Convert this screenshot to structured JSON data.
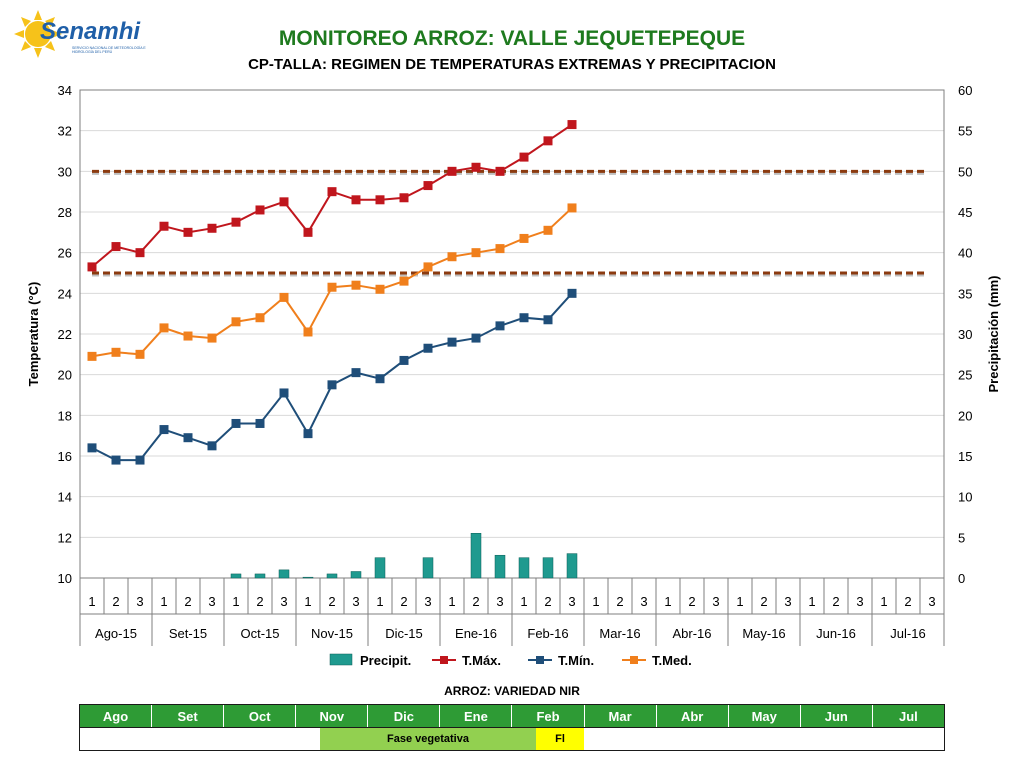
{
  "header": {
    "logo_text": "Senamhi",
    "logo_subtext": "Servicio Nacional de Meteorología e Hidrología del Perú"
  },
  "chart_data": {
    "type": "line",
    "title": "MONITOREO ARROZ: VALLE JEQUETEPEQUE",
    "subtitle": "CP-TALLA: REGIMEN DE TEMPERATURAS EXTREMAS Y PRECIPITACION",
    "ylabel": "Temperatura (°C)",
    "y2label": "Precipitación  (mm)",
    "ylim": [
      10,
      34
    ],
    "y_ticks": [
      10,
      12,
      14,
      16,
      18,
      20,
      22,
      24,
      26,
      28,
      30,
      32,
      34
    ],
    "y2lim": [
      0,
      60
    ],
    "y2_ticks": [
      0,
      5,
      10,
      15,
      20,
      25,
      30,
      35,
      40,
      45,
      50,
      55,
      60
    ],
    "grid": true,
    "dekads": [
      "1",
      "2",
      "3"
    ],
    "months": [
      "Ago-15",
      "Set-15",
      "Oct-15",
      "Nov-15",
      "Dic-15",
      "Ene-16",
      "Feb-16",
      "Mar-16",
      "Abr-16",
      "May-16",
      "Jun-16",
      "Jul-16"
    ],
    "legend_position": "bottom",
    "series": [
      {
        "name": "Precipit.",
        "type": "bar",
        "axis": "right",
        "color": "#1f9a8f",
        "values": [
          0,
          0,
          0,
          0,
          0,
          0,
          0.5,
          0.5,
          1,
          0.1,
          0.5,
          0.8,
          2.5,
          0,
          2.5,
          0,
          5.5,
          2.8,
          2.5,
          2.5,
          3,
          null,
          null,
          null,
          null,
          null,
          null,
          null,
          null,
          null,
          null,
          null,
          null,
          null,
          null,
          null
        ]
      },
      {
        "name": "T.Máx.",
        "type": "line",
        "axis": "left",
        "color": "#c0161d",
        "values": [
          25.3,
          26.3,
          26.0,
          27.3,
          27.0,
          27.2,
          27.5,
          28.1,
          28.5,
          27.0,
          29.0,
          28.6,
          28.6,
          28.7,
          29.3,
          30.0,
          30.2,
          30.0,
          30.7,
          31.5,
          32.3,
          null,
          null,
          null,
          null,
          null,
          null,
          null,
          null,
          null,
          null,
          null,
          null,
          null,
          null,
          null
        ]
      },
      {
        "name": "T.Mín.",
        "type": "line",
        "axis": "left",
        "color": "#1f4e79",
        "values": [
          16.4,
          15.8,
          15.8,
          17.3,
          16.9,
          16.5,
          17.6,
          17.6,
          19.1,
          17.1,
          19.5,
          20.1,
          19.8,
          20.7,
          21.3,
          21.6,
          21.8,
          22.4,
          22.8,
          22.7,
          24.0,
          null,
          null,
          null,
          null,
          null,
          null,
          null,
          null,
          null,
          null,
          null,
          null,
          null,
          null,
          null
        ]
      },
      {
        "name": "T.Med.",
        "type": "line",
        "axis": "left",
        "color": "#f07f1c",
        "values": [
          20.9,
          21.1,
          21.0,
          22.3,
          21.9,
          21.8,
          22.6,
          22.8,
          23.8,
          22.1,
          24.3,
          24.4,
          24.2,
          24.6,
          25.3,
          25.8,
          26.0,
          26.2,
          26.7,
          27.1,
          28.2,
          null,
          null,
          null,
          null,
          null,
          null,
          null,
          null,
          null,
          null,
          null,
          null,
          null,
          null,
          null
        ]
      }
    ],
    "thresholds": [
      {
        "value": 30,
        "axis": "left",
        "color": "#8b3a0f",
        "style": "dashed"
      },
      {
        "value": 25,
        "axis": "left",
        "color": "#8b3a0f",
        "style": "dashed"
      }
    ]
  },
  "phenology": {
    "title": "ARROZ: VARIEDAD NIR",
    "months": [
      "Ago",
      "Set",
      "Oct",
      "Nov",
      "Dic",
      "Ene",
      "Feb",
      "Mar",
      "Abr",
      "May",
      "Jun",
      "Jul"
    ],
    "month_color": "#2e9b35",
    "stages": [
      {
        "label": "Fase vegetativa",
        "color": "#92d050"
      },
      {
        "label": "Fl",
        "color": "#ffff00"
      }
    ]
  }
}
